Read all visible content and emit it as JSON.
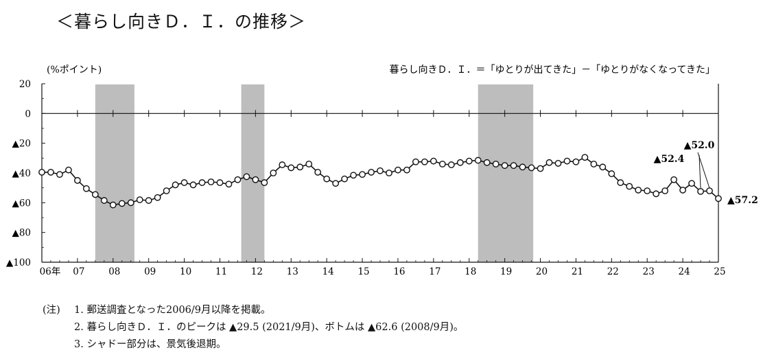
{
  "heading": "＜暮らし向きＤ．Ｉ．の推移＞",
  "chart_data": {
    "type": "line",
    "unit_label": "(%ポイント)",
    "formula": "暮らし向きＤ．Ｉ．＝「ゆとりが出てきた」－「ゆとりがなくなってきた」",
    "ylim": [
      -100,
      20
    ],
    "y_ticks": [
      {
        "value": 20,
        "label": "20"
      },
      {
        "value": 0,
        "label": "0"
      },
      {
        "value": -20,
        "label": "▲20"
      },
      {
        "value": -40,
        "label": "▲40"
      },
      {
        "value": -60,
        "label": "▲60"
      },
      {
        "value": -80,
        "label": "▲80"
      },
      {
        "value": -100,
        "label": "▲100"
      }
    ],
    "xlim": [
      2006,
      2025
    ],
    "x_ticks": [
      {
        "value": 2006,
        "label": "06年"
      },
      {
        "value": 2007,
        "label": "07"
      },
      {
        "value": 2008,
        "label": "08"
      },
      {
        "value": 2009,
        "label": "09"
      },
      {
        "value": 2010,
        "label": "10"
      },
      {
        "value": 2011,
        "label": "11"
      },
      {
        "value": 2012,
        "label": "12"
      },
      {
        "value": 2013,
        "label": "13"
      },
      {
        "value": 2014,
        "label": "14"
      },
      {
        "value": 2015,
        "label": "15"
      },
      {
        "value": 2016,
        "label": "16"
      },
      {
        "value": 2017,
        "label": "17"
      },
      {
        "value": 2018,
        "label": "18"
      },
      {
        "value": 2019,
        "label": "19"
      },
      {
        "value": 2020,
        "label": "20"
      },
      {
        "value": 2021,
        "label": "21"
      },
      {
        "value": 2022,
        "label": "22"
      },
      {
        "value": 2023,
        "label": "23"
      },
      {
        "value": 2024,
        "label": "24"
      },
      {
        "value": 2025,
        "label": "25"
      }
    ],
    "recession_periods": [
      [
        2007.5,
        2008.6
      ],
      [
        2011.6,
        2012.25
      ],
      [
        2018.25,
        2019.8
      ]
    ],
    "series": [
      {
        "points": [
          [
            2006.0,
            -39.5
          ],
          [
            2006.25,
            -39.5
          ],
          [
            2006.5,
            -41.0
          ],
          [
            2006.75,
            -38.0
          ],
          [
            2007.0,
            -45.0
          ],
          [
            2007.25,
            -50.5
          ],
          [
            2007.5,
            -54.5
          ],
          [
            2007.75,
            -58.5
          ],
          [
            2008.0,
            -61.5
          ],
          [
            2008.25,
            -60.5
          ],
          [
            2008.5,
            -60.0
          ],
          [
            2008.75,
            -58.0
          ],
          [
            2009.0,
            -58.5
          ],
          [
            2009.25,
            -56.5
          ],
          [
            2009.5,
            -52.0
          ],
          [
            2009.75,
            -48.0
          ],
          [
            2010.0,
            -46.5
          ],
          [
            2010.25,
            -48.0
          ],
          [
            2010.5,
            -46.5
          ],
          [
            2010.75,
            -46.0
          ],
          [
            2011.0,
            -46.5
          ],
          [
            2011.25,
            -47.5
          ],
          [
            2011.5,
            -44.5
          ],
          [
            2011.75,
            -42.5
          ],
          [
            2012.0,
            -44.5
          ],
          [
            2012.25,
            -46.5
          ],
          [
            2012.5,
            -40.0
          ],
          [
            2012.75,
            -34.5
          ],
          [
            2013.0,
            -36.5
          ],
          [
            2013.25,
            -36.0
          ],
          [
            2013.5,
            -34.0
          ],
          [
            2013.75,
            -39.5
          ],
          [
            2014.0,
            -44.0
          ],
          [
            2014.25,
            -47.0
          ],
          [
            2014.5,
            -44.0
          ],
          [
            2014.75,
            -41.5
          ],
          [
            2015.0,
            -41.0
          ],
          [
            2015.25,
            -39.5
          ],
          [
            2015.5,
            -38.5
          ],
          [
            2015.75,
            -40.0
          ],
          [
            2016.0,
            -38.0
          ],
          [
            2016.25,
            -38.0
          ],
          [
            2016.5,
            -32.5
          ],
          [
            2016.75,
            -32.5
          ],
          [
            2017.0,
            -32.0
          ],
          [
            2017.25,
            -34.0
          ],
          [
            2017.5,
            -34.5
          ],
          [
            2017.75,
            -33.0
          ],
          [
            2018.0,
            -32.0
          ],
          [
            2018.25,
            -31.5
          ],
          [
            2018.5,
            -33.0
          ],
          [
            2018.75,
            -34.0
          ],
          [
            2019.0,
            -35.0
          ],
          [
            2019.25,
            -35.0
          ],
          [
            2019.5,
            -36.0
          ],
          [
            2019.75,
            -36.5
          ],
          [
            2020.0,
            -37.0
          ],
          [
            2020.25,
            -33.0
          ],
          [
            2020.5,
            -33.5
          ],
          [
            2020.75,
            -32.0
          ],
          [
            2021.0,
            -32.5
          ],
          [
            2021.25,
            -29.5
          ],
          [
            2021.5,
            -34.0
          ],
          [
            2021.75,
            -36.0
          ],
          [
            2022.0,
            -40.5
          ],
          [
            2022.25,
            -46.5
          ],
          [
            2022.5,
            -49.0
          ],
          [
            2022.75,
            -51.5
          ],
          [
            2023.0,
            -52.0
          ],
          [
            2023.25,
            -54.0
          ],
          [
            2023.5,
            -52.0
          ],
          [
            2023.75,
            -44.5
          ],
          [
            2024.0,
            -51.5
          ],
          [
            2024.25,
            -47.0
          ],
          [
            2024.5,
            -52.4
          ],
          [
            2024.75,
            -52.0
          ],
          [
            2025.0,
            -57.2
          ]
        ]
      }
    ],
    "annotations": [
      {
        "x": 2024.5,
        "y": -52.4,
        "label": "▲52.4"
      },
      {
        "x": 2024.75,
        "y": -52.0,
        "label": "▲52.0"
      },
      {
        "x": 2025.0,
        "y": -57.2,
        "label": "▲57.2"
      }
    ]
  },
  "notes": {
    "prefix": "(注)",
    "items": [
      "1. 郵送調査となった2006/9月以降を掲載。",
      "2. 暮らし向きＤ．Ｉ．のピークは ▲29.5 (2021/9月)、ボトムは ▲62.6 (2008/9月)。",
      "3. シャドー部分は、景気後退期。"
    ]
  }
}
